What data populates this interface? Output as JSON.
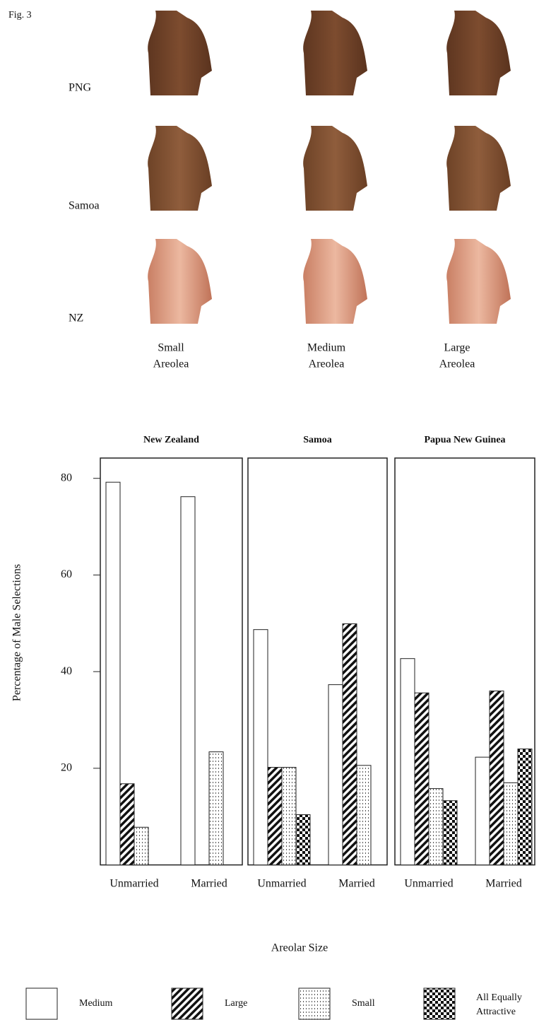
{
  "figure": {
    "label": "Fig. 3",
    "rows": [
      "PNG",
      "Samoa",
      "NZ"
    ],
    "columns": [
      [
        "Small",
        "Areolea"
      ],
      [
        "Medium",
        "Areolea"
      ],
      [
        "Large",
        "Areolea"
      ]
    ]
  },
  "chart_data": {
    "type": "bar",
    "panels": [
      "New Zealand",
      "Samoa",
      "Papua New Guinea"
    ],
    "categories": [
      "Unmarried",
      "Married",
      "Unmarried",
      "Married",
      "Unmarried",
      "Married"
    ],
    "ylabel": "Percentage of Male Selections",
    "xlabel": "Areolar Size",
    "ylim": [
      0,
      84.2
    ],
    "yticks": [
      20,
      40,
      60,
      80
    ],
    "series": [
      {
        "name": "Medium",
        "pattern": "none",
        "values": [
          79.2,
          76.2,
          48.7,
          37.3,
          42.7,
          22.3
        ]
      },
      {
        "name": "Large",
        "pattern": "diagonal",
        "values": [
          16.8,
          0,
          20.2,
          49.9,
          35.6,
          36.0
        ]
      },
      {
        "name": "Small",
        "pattern": "dots",
        "values": [
          7.8,
          23.4,
          20.2,
          20.6,
          15.8,
          17.0
        ]
      },
      {
        "name": "All Equally Attractive",
        "pattern": "checker",
        "values": [
          0,
          0,
          10.4,
          0,
          13.3,
          24.0
        ]
      }
    ]
  }
}
